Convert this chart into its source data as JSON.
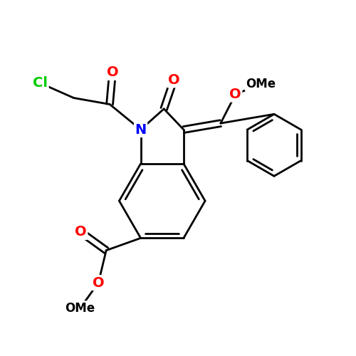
{
  "bg_color": "#ffffff",
  "bond_color": "#000000",
  "bond_width": 2.0,
  "atom_colors": {
    "O": "#ff0000",
    "N": "#0000ff",
    "Cl": "#00cc00",
    "C": "#000000"
  },
  "font_size": 14,
  "fig_size": [
    5.0,
    5.0
  ],
  "dpi": 100
}
